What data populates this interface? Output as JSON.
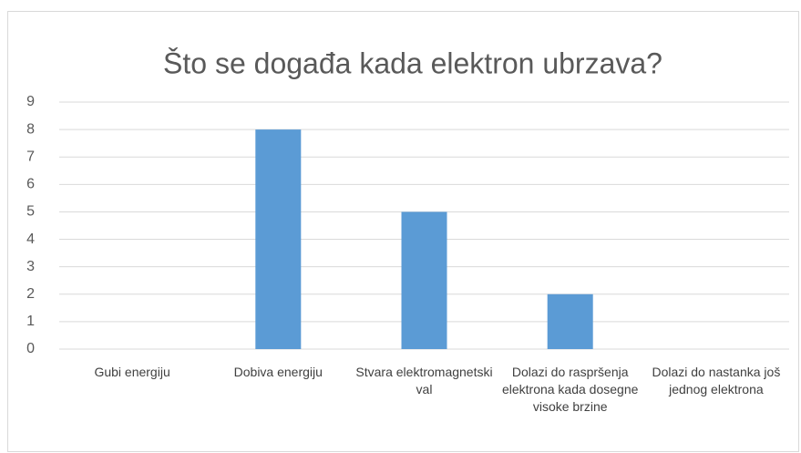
{
  "chart_data": {
    "type": "bar",
    "title": "Što se događa kada elektron ubrzava?",
    "categories": [
      "Gubi energiju",
      "Dobiva energiju",
      "Stvara elektromagnetski val",
      "Dolazi do raspršenja elektrona kada dosegne visoke brzine",
      "Dolazi do nastanka još jednog elektrona"
    ],
    "values": [
      0,
      8,
      5,
      2,
      0
    ],
    "color": "#5b9bd5",
    "ylim": [
      0,
      9
    ],
    "yticks": [
      0,
      1,
      2,
      3,
      4,
      5,
      6,
      7,
      8,
      9
    ],
    "grid": true
  }
}
